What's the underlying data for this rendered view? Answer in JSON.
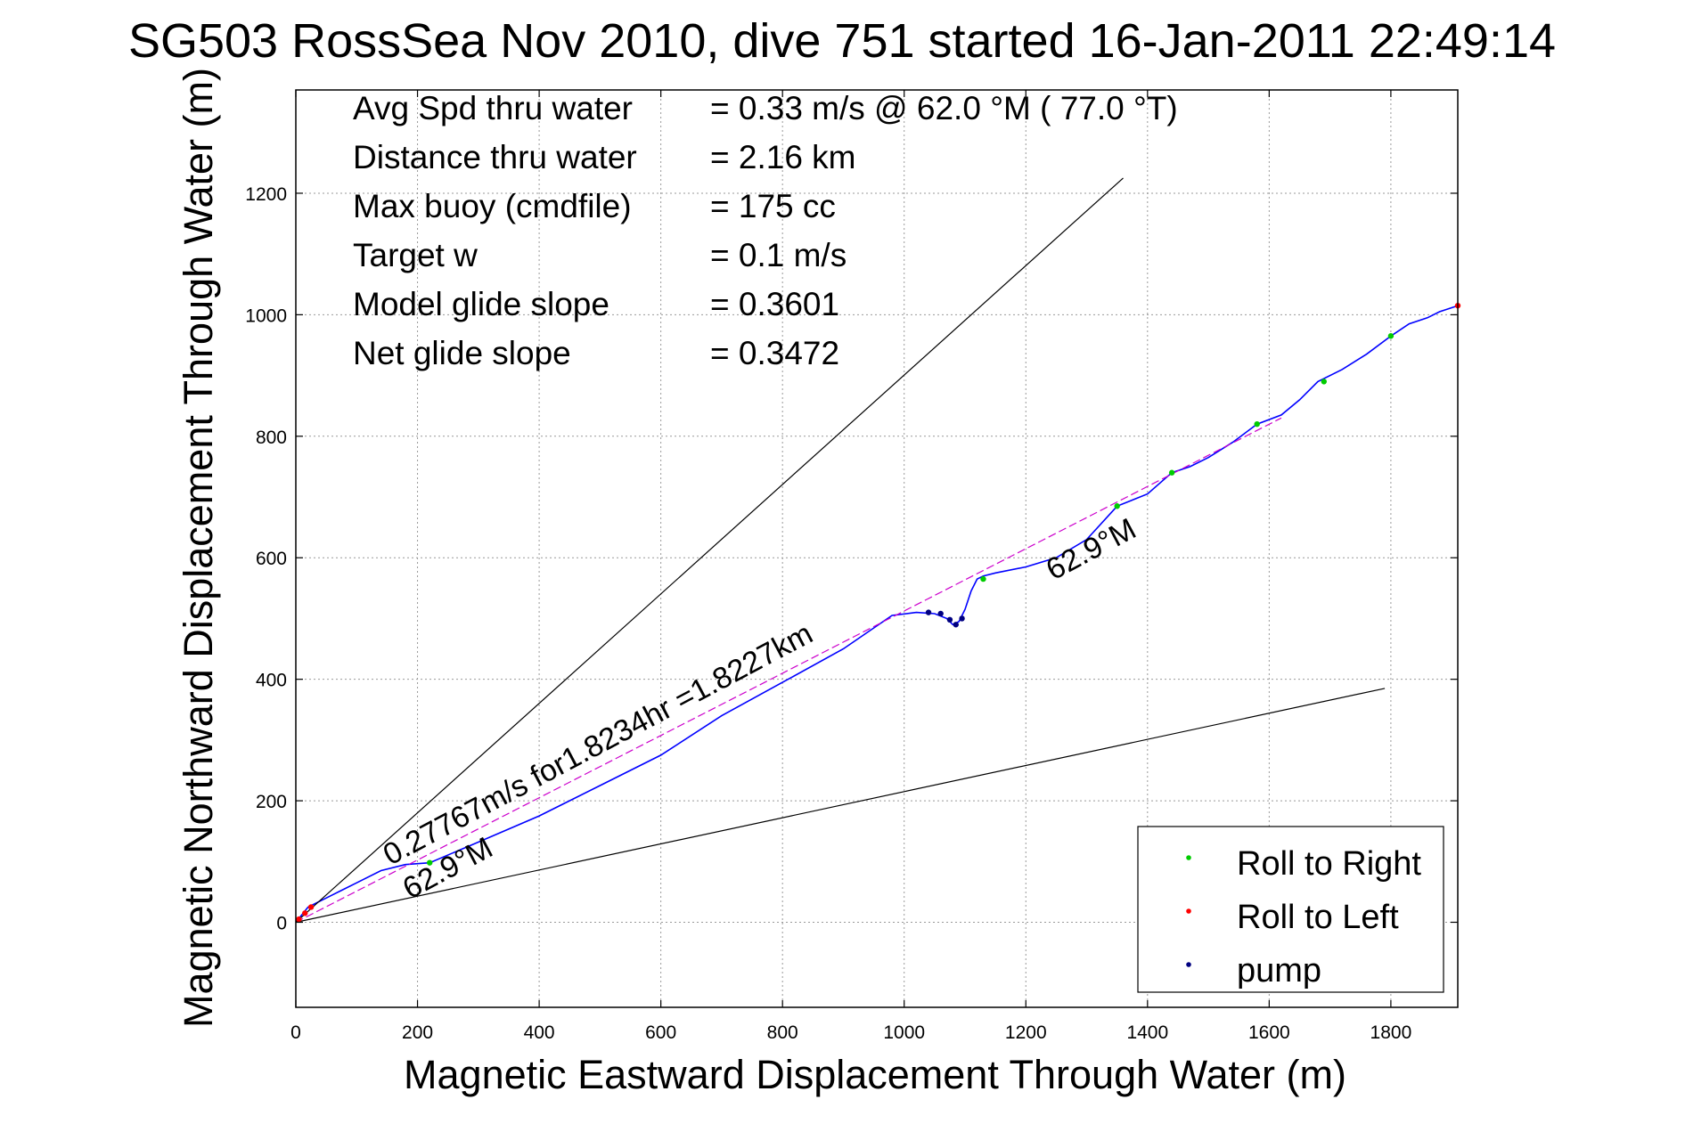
{
  "chart_data": {
    "type": "line",
    "title": "SG503 RossSea Nov 2010, dive 751 started 16-Jan-2011 22:49:14",
    "xlabel": "Magnetic Eastward Displacement Through Water (m)",
    "ylabel": "Magnetic Northward Displacement Through Water (m)",
    "xlim": [
      0,
      1910
    ],
    "ylim": [
      -140,
      1370
    ],
    "xticks": [
      0,
      200,
      400,
      600,
      800,
      1000,
      1200,
      1400,
      1600,
      1800
    ],
    "yticks": [
      0,
      200,
      400,
      600,
      800,
      1000,
      1200
    ],
    "xtick_labels": [
      "0",
      "200",
      "400",
      "600",
      "800",
      "1000",
      "1200",
      "1400",
      "1600",
      "1800"
    ],
    "ytick_labels": [
      "0",
      "200",
      "400",
      "600",
      "800",
      "1000",
      "1200"
    ],
    "grid": true,
    "legend_position": "bottom-right",
    "info_lines": [
      {
        "label": "Avg Spd thru water",
        "value": "=  0.33 m/s @  62.0 °M ( 77.0 °T)"
      },
      {
        "label": "Distance thru water",
        "value": "=  2.16 km"
      },
      {
        "label": "Max buoy (cmdfile)",
        "value": "= 175 cc"
      },
      {
        "label": "Target w",
        "value": "= 0.1 m/s"
      },
      {
        "label": "Model glide slope",
        "value": "= 0.3601"
      },
      {
        "label": "Net glide slope",
        "value": "= 0.3472"
      }
    ],
    "annotations": [
      {
        "text": "0.27767m/s for1.8234hr =1.8227km"
      },
      {
        "text": "62.9°M"
      },
      {
        "text": "62.9°M"
      }
    ],
    "legend": [
      {
        "label": "Roll to Right",
        "color": "#00cc00"
      },
      {
        "label": "Roll to Left",
        "color": "#ff0000"
      },
      {
        "label": "pump",
        "color": "#000080"
      }
    ],
    "series": [
      {
        "name": "track",
        "color": "#0000ff",
        "x": [
          0,
          20,
          60,
          100,
          140,
          180,
          220,
          260,
          300,
          400,
          500,
          600,
          700,
          800,
          900,
          980,
          1020,
          1050,
          1070,
          1080,
          1090,
          1100,
          1110,
          1120,
          1130,
          1150,
          1200,
          1250,
          1300,
          1350,
          1400,
          1440,
          1470,
          1500,
          1540,
          1580,
          1620,
          1650,
          1680,
          1720,
          1760,
          1800,
          1830,
          1860,
          1880,
          1910
        ],
        "y": [
          0,
          25,
          45,
          65,
          85,
          95,
          98,
          115,
          132,
          175,
          225,
          275,
          340,
          395,
          450,
          505,
          510,
          508,
          500,
          490,
          495,
          515,
          545,
          565,
          570,
          575,
          585,
          600,
          630,
          685,
          705,
          740,
          750,
          765,
          790,
          820,
          835,
          860,
          890,
          910,
          935,
          965,
          985,
          995,
          1005,
          1015
        ]
      },
      {
        "name": "fit",
        "color": "#cc00cc",
        "x": [
          0,
          1620
        ],
        "y": [
          0,
          830
        ]
      },
      {
        "name": "glide-upper",
        "color": "#000000",
        "x": [
          0,
          1360
        ],
        "y": [
          0,
          1225
        ]
      },
      {
        "name": "glide-lower",
        "color": "#000000",
        "x": [
          0,
          1790
        ],
        "y": [
          0,
          385
        ]
      }
    ],
    "roll_right_points": {
      "x": [
        220,
        1130,
        1350,
        1440,
        1580,
        1690,
        1800
      ],
      "y": [
        98,
        565,
        685,
        740,
        820,
        890,
        965
      ]
    },
    "roll_left_points": {
      "x": [
        5,
        15,
        25,
        1910
      ],
      "y": [
        5,
        15,
        25,
        1015
      ]
    },
    "pump_points": {
      "x": [
        1040,
        1060,
        1075,
        1085,
        1095
      ],
      "y": [
        510,
        508,
        498,
        490,
        500
      ]
    }
  }
}
